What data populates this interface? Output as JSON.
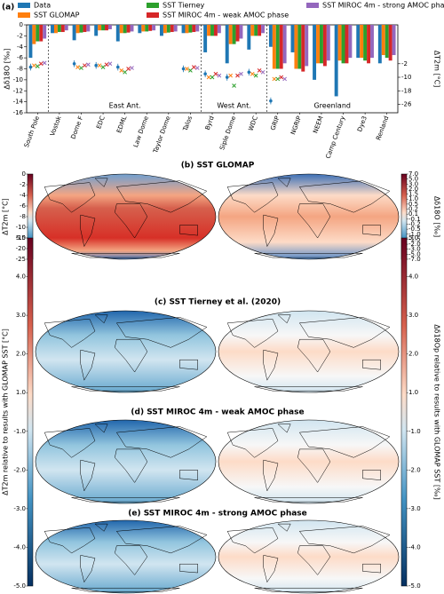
{
  "chart_data": [
    {
      "type": "bar",
      "label": "(a)",
      "ylabel": "Δδ18O [‰]",
      "y2label": "ΔT2m [°C]",
      "categories": [
        "South Pole",
        "Vostok",
        "Dome F",
        "EDC",
        "EDML",
        "Law Dome",
        "Taylor Dome",
        "Talos",
        "Byrd",
        "Siple Dome",
        "WDC",
        "GRIP",
        "NGRIP",
        "NEEM",
        "Camp Century",
        "Dye3",
        "Renland"
      ],
      "regions": [
        "East Ant.",
        "West Ant.",
        "Greenland"
      ],
      "ylim": [
        0,
        -16
      ],
      "yticks": [
        0,
        -2,
        -4,
        -6,
        -8,
        -10,
        -12,
        -14,
        -16
      ],
      "y2lim": [
        21,
        -31
      ],
      "y2ticks": [
        -2,
        -10,
        -18,
        -26
      ],
      "series": [
        {
          "name": "Data",
          "color": "#1f77b4",
          "values": [
            -6,
            -1.5,
            -2.8,
            -2,
            -3,
            -1.5,
            -2,
            -1.5,
            -5,
            -7,
            -4.5,
            -4,
            -5,
            -10,
            -13,
            -6,
            -7
          ],
          "t_values": [
            -4,
            null,
            -2,
            -3,
            -4,
            null,
            null,
            -5,
            -8,
            -10,
            -7,
            -24,
            null,
            null,
            null,
            null,
            null
          ],
          "t_errors": [
            2,
            null,
            2,
            2,
            2,
            null,
            null,
            2,
            2,
            2,
            2,
            2,
            null,
            null,
            null,
            null,
            null
          ]
        },
        {
          "name": "SST GLOMAP",
          "color": "#ff7f0e",
          "values": [
            -3.5,
            -1.5,
            -1.5,
            -1,
            -1.5,
            -1.2,
            -1.5,
            -1.5,
            -2,
            -3.5,
            -2,
            -8,
            -8,
            -7,
            -6.5,
            -6,
            -5.5
          ],
          "t_values": [
            -3,
            null,
            -4,
            -3,
            -6,
            null,
            null,
            -5,
            -10,
            -9,
            -8,
            -11,
            null,
            null,
            null,
            null,
            null
          ]
        },
        {
          "name": "SST Tierney",
          "color": "#2ca02c",
          "values": [
            -3,
            -1.3,
            -1.4,
            -1,
            -1.5,
            -1.2,
            -1.4,
            -1.4,
            -2,
            -3.5,
            -2,
            -8,
            -8,
            -7,
            -7,
            -6.5,
            -6
          ],
          "t_values": [
            -3.5,
            null,
            -4.5,
            -4,
            -7,
            null,
            null,
            -6,
            -10,
            -15,
            -9,
            -11,
            null,
            null,
            null,
            null,
            null
          ]
        },
        {
          "name": "SST MIROC 4m - weak AMOC phase",
          "color": "#d62728",
          "values": [
            -3,
            -1.3,
            -1.3,
            -1,
            -1.4,
            -1.1,
            -1.3,
            -1.3,
            -2,
            -3,
            -2,
            -8,
            -8.5,
            -7.5,
            -7,
            -7,
            -6.5
          ],
          "t_values": [
            -2,
            null,
            -3,
            -2.5,
            -5,
            null,
            null,
            -4,
            -8,
            -9,
            -6,
            -10,
            null,
            null,
            null,
            null,
            null
          ]
        },
        {
          "name": "SST MIROC 4m - strong AMOC phase",
          "color": "#9467bd",
          "values": [
            -2.5,
            -1,
            -1.2,
            -0.8,
            -1.2,
            -1,
            -1.2,
            -1.2,
            -1.5,
            -2.5,
            -1.5,
            -7,
            -7.5,
            -6.5,
            -6,
            -6,
            -5.5
          ],
          "t_values": [
            -1.5,
            null,
            -2.5,
            -2,
            -4.5,
            null,
            null,
            -4.5,
            -9,
            -8,
            -7,
            -11,
            null,
            null,
            null,
            null,
            null
          ]
        }
      ]
    },
    {
      "type": "map",
      "title": "(b) SST GLOMAP",
      "colorbar_left": {
        "label": "ΔT2m [°C]",
        "ticks": [
          0,
          -2,
          -4,
          -6,
          -8,
          -10,
          -15,
          -20,
          -25
        ]
      },
      "colorbar_right": {
        "label": "Δδ18O [‰]",
        "ticks": [
          {
            "value": 7,
            "label": "7.0"
          },
          {
            "value": 5,
            "label": "5.0"
          },
          {
            "value": 3,
            "label": "3.0"
          },
          {
            "value": 2,
            "label": "2.0"
          },
          1.5,
          {
            "value": 1,
            "label": "1.0"
          },
          0.5,
          0.2,
          0.1,
          -0.1,
          -0.2,
          -0.5,
          {
            "value": -1,
            "label": "-1.0"
          },
          -1.5,
          {
            "value": -2,
            "label": "-2.0"
          },
          {
            "value": -3,
            "label": "-3.0"
          },
          {
            "value": -5,
            "label": "-5.0"
          },
          {
            "value": -7,
            "label": "-7.0"
          }
        ]
      }
    },
    {
      "type": "map",
      "title": "(c) SST Tierney et al. (2020)",
      "colorbar_left": {
        "label": "ΔT2m relative to results with GLOMAP SST [°C]",
        "ticks": [
          {
            "value": 5,
            "label": "5.0"
          },
          {
            "value": 4,
            "label": "4.0"
          },
          {
            "value": 3,
            "label": "3.0"
          },
          {
            "value": 2,
            "label": "2.0"
          },
          {
            "value": 1,
            "label": "1.0"
          },
          {
            "value": -1,
            "label": "-1.0"
          },
          {
            "value": -2,
            "label": "-2.0"
          },
          {
            "value": -3,
            "label": "-3.0"
          },
          {
            "value": -4,
            "label": "-4.0"
          },
          {
            "value": -5,
            "label": "-5.0"
          }
        ]
      },
      "colorbar_right": {
        "label": "Δδ18Op relative to results with GLOMAP SST [‰]",
        "ticks": [
          {
            "value": 5,
            "label": "5.0"
          },
          {
            "value": 4,
            "label": "4.0"
          },
          {
            "value": 3,
            "label": "3.0"
          },
          {
            "value": 2,
            "label": "2.0"
          },
          {
            "value": 1,
            "label": "1.0"
          },
          {
            "value": -1,
            "label": "-1.0"
          },
          {
            "value": -2,
            "label": "-2.0"
          },
          {
            "value": -3,
            "label": "-3.0"
          },
          {
            "value": -4,
            "label": "-4.0"
          },
          {
            "value": -5,
            "label": "-5.0"
          }
        ]
      }
    },
    {
      "type": "map",
      "title": "(d) SST MIROC 4m - weak AMOC phase"
    },
    {
      "type": "map",
      "title": "(e) SST MIROC 4m - strong AMOC phase"
    }
  ]
}
